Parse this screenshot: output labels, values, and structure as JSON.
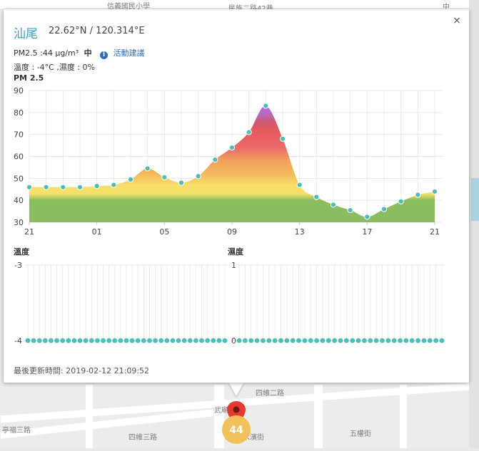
{
  "map": {
    "labels": [
      "信義國民小學",
      "民族二路42巷",
      "四維二路",
      "武廟",
      "四維三路",
      "五權街",
      "永濱街",
      "亭福三路",
      "中"
    ],
    "marker_value": "44"
  },
  "popup": {
    "close_label": "×",
    "station_name": "汕尾",
    "coords": "22.62°N / 120.314°E",
    "pm25_text": "PM2.5 :44 μg/m³",
    "pm25_level": "中",
    "advice_label": "活動建議",
    "temp_text": "溫度 : -4°C ,濕度 : 0%",
    "pm_chart_title": "PM 2.5",
    "temp_chart_title": "溫度",
    "humidity_chart_title": "濕度",
    "update_text": "最後更新時間: 2019-02-12 21:09:52"
  },
  "chart_data": [
    {
      "type": "area",
      "title": "PM 2.5",
      "x_ticks": [
        "21",
        "01",
        "05",
        "09",
        "13",
        "17",
        "21"
      ],
      "x_tick_index": [
        0,
        4,
        8,
        12,
        16,
        20,
        24
      ],
      "values": [
        46,
        46,
        46,
        46,
        46.5,
        47,
        49.5,
        54.5,
        50.5,
        48,
        51,
        58.5,
        64,
        71,
        83,
        68,
        47,
        41.5,
        38,
        35.5,
        32.5,
        36,
        39.5,
        42.5,
        44
      ],
      "ylim": [
        30,
        90
      ],
      "y_ticks": [
        30,
        40,
        50,
        60,
        70,
        80,
        90
      ],
      "grid": true,
      "point_color": "#4dbdb5",
      "colors": {
        "green": "#8bbd5e",
        "yellow": "#f6df6b",
        "orange": "#f0a25a",
        "red": "#e65a5a",
        "purple": "#b86ad0"
      }
    },
    {
      "type": "line",
      "title": "溫度",
      "values": [
        -4,
        -4,
        -4,
        -4,
        -4,
        -4,
        -4,
        -4,
        -4,
        -4,
        -4,
        -4,
        -4,
        -4,
        -4,
        -4,
        -4,
        -4,
        -4,
        -4,
        -4,
        -4,
        -4,
        -4,
        -4,
        -4,
        -4,
        -4,
        -4,
        -4,
        -4,
        -4,
        -4,
        -4,
        -4
      ],
      "ylim": [
        -4,
        -3
      ],
      "y_ticks": [
        -4,
        -3
      ],
      "grid": true,
      "point_color": "#4dbdb5"
    },
    {
      "type": "line",
      "title": "濕度",
      "values": [
        0,
        0,
        0,
        0,
        0,
        0,
        0,
        0,
        0,
        0,
        0,
        0,
        0,
        0,
        0,
        0,
        0,
        0,
        0,
        0,
        0,
        0,
        0,
        0,
        0,
        0,
        0,
        0,
        0,
        0,
        0,
        0,
        0,
        0,
        0
      ],
      "ylim": [
        0,
        1
      ],
      "y_ticks": [
        0,
        1
      ],
      "grid": true,
      "point_color": "#4dbdb5"
    }
  ]
}
